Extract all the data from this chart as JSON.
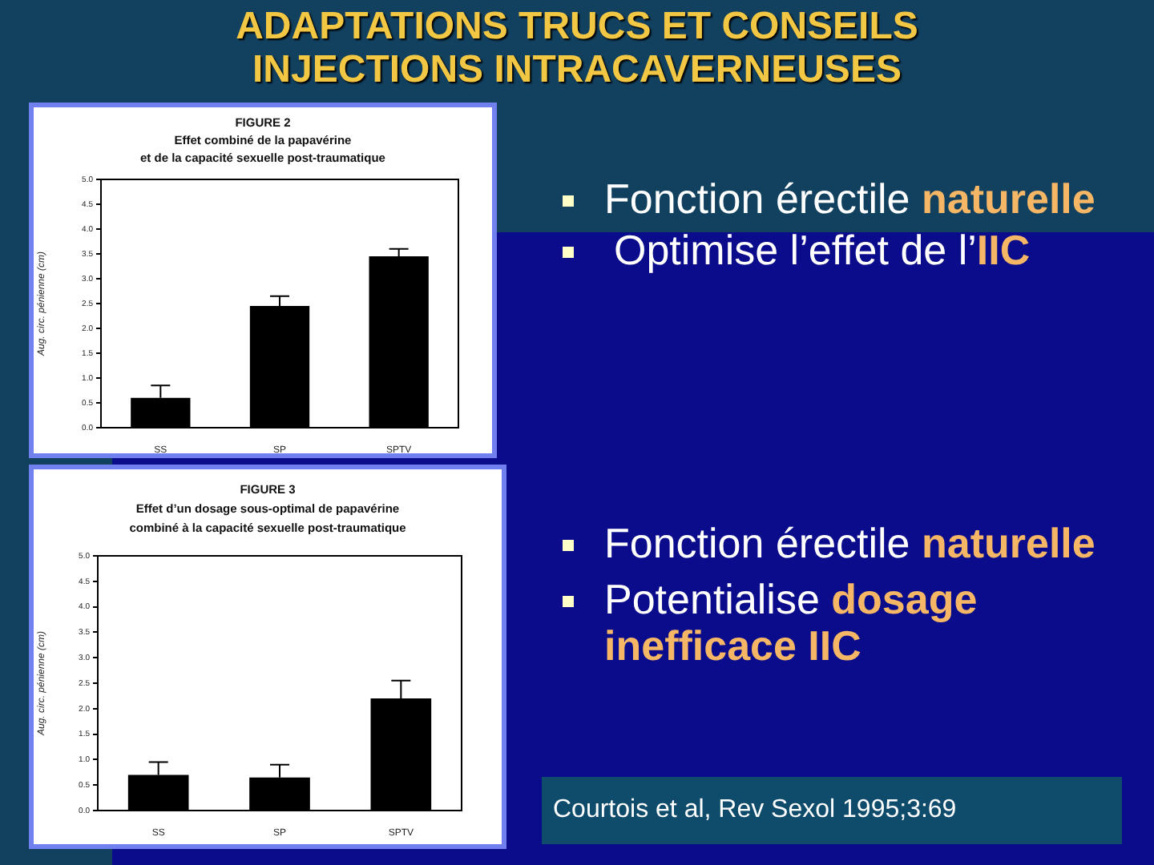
{
  "chart_data": [
    {
      "type": "bar",
      "title": "FIGURE 2",
      "subtitle": "Effet combiné de la papavérine\net de la capacité sexuelle post-traumatique",
      "ylabel": "Aug. circ. pénienne (cm)",
      "categories": [
        "SS",
        "SP",
        "SPTV"
      ],
      "values": [
        0.6,
        2.45,
        3.45
      ],
      "errors": [
        [
          0.6,
          0.85
        ],
        [
          2.45,
          2.65
        ],
        [
          3.45,
          3.6
        ]
      ],
      "color": "#000000",
      "ylim": [
        0,
        5
      ],
      "yticks": [
        {
          "value": 0,
          "label": "0.0"
        },
        {
          "value": 0.5,
          "label": "0.5"
        },
        {
          "value": 1,
          "label": "1.0"
        },
        {
          "value": 1.5,
          "label": "1.5"
        },
        {
          "value": 2,
          "label": "2.0"
        },
        {
          "value": 2.5,
          "label": "2.5"
        },
        {
          "value": 3,
          "label": "3.0"
        },
        {
          "value": 3.5,
          "label": "3.5"
        },
        {
          "value": 4,
          "label": "4.0"
        },
        {
          "value": 4.5,
          "label": "4.5"
        },
        {
          "value": 5,
          "label": "5.0"
        }
      ],
      "annotations": [
        "ADAPTATIONS TRUCS ET CONSEILS\nINJECTIONS INTRACAVERNEUSES",
        "Fonction érectile naturelle",
        "Optimise l’effet de l’IIC"
      ]
    },
    {
      "type": "bar",
      "title": "FIGURE 3",
      "subtitle": "Effet d’un dosage sous-optimal de papavérine\ncombiné à la capacité sexuelle post-traumatique",
      "ylabel": "Aug. circ. pénienne (cm)",
      "categories": [
        "SS",
        "SP",
        "SPTV"
      ],
      "values": [
        0.7,
        0.65,
        2.2
      ],
      "errors": [
        [
          0.7,
          0.95
        ],
        [
          0.65,
          0.9
        ],
        [
          2.2,
          2.55
        ]
      ],
      "color": "#000000",
      "ylim": [
        0,
        5
      ],
      "yticks": [
        {
          "value": 0,
          "label": "0.0"
        },
        {
          "value": 0.5,
          "label": "0.5"
        },
        {
          "value": 1,
          "label": "1.0"
        },
        {
          "value": 1.5,
          "label": "1.5"
        },
        {
          "value": 2,
          "label": "2.0"
        },
        {
          "value": 2.5,
          "label": "2.5"
        },
        {
          "value": 3,
          "label": "3.0"
        },
        {
          "value": 3.5,
          "label": "3.5"
        },
        {
          "value": 4,
          "label": "4.0"
        },
        {
          "value": 4.5,
          "label": "4.5"
        },
        {
          "value": 5,
          "label": "5.0"
        }
      ],
      "annotations": [
        "Fonction érectile naturelle",
        "Potentialise dosage inefficace IIC",
        "Courtois et al, Rev Sexol 1995;3:69"
      ]
    }
  ]
}
